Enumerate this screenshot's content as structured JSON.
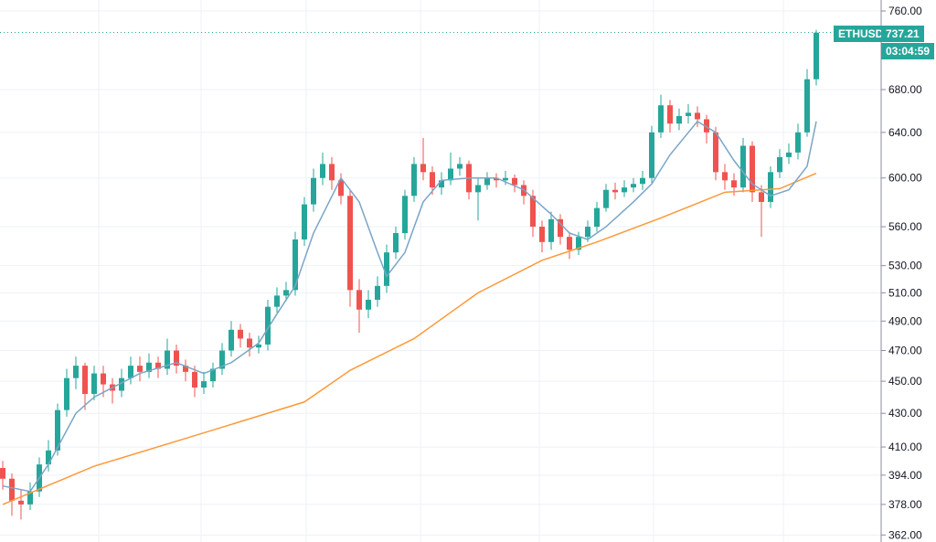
{
  "chart_data": {
    "type": "candlestick",
    "symbol": "ETHUSD",
    "last_price": "737.21",
    "countdown": "03:04:59",
    "y_scale": "log",
    "ylim": [
      362,
      760
    ],
    "y_ticks": [
      760,
      680,
      640,
      600,
      560,
      530,
      510,
      490,
      470,
      450,
      430,
      410,
      394,
      378,
      362
    ],
    "grid": true,
    "colors": {
      "up": "#26a69a",
      "down": "#ef5350",
      "ma_fast": "#7aa5c6",
      "ma_slow": "#ff9838",
      "grid": "#edf1f7",
      "tag": "#26a69a"
    },
    "candles": [
      [
        398,
        402,
        386,
        392
      ],
      [
        392,
        395,
        372,
        380
      ],
      [
        380,
        386,
        370,
        378
      ],
      [
        378,
        390,
        375,
        385
      ],
      [
        385,
        404,
        382,
        400
      ],
      [
        400,
        414,
        396,
        408
      ],
      [
        408,
        436,
        405,
        432
      ],
      [
        432,
        458,
        428,
        452
      ],
      [
        452,
        466,
        445,
        460
      ],
      [
        460,
        462,
        432,
        442
      ],
      [
        442,
        460,
        438,
        455
      ],
      [
        455,
        460,
        440,
        448
      ],
      [
        448,
        452,
        436,
        444
      ],
      [
        444,
        458,
        440,
        452
      ],
      [
        452,
        466,
        448,
        460
      ],
      [
        460,
        466,
        450,
        456
      ],
      [
        456,
        468,
        452,
        462
      ],
      [
        462,
        466,
        452,
        458
      ],
      [
        458,
        478,
        454,
        470
      ],
      [
        470,
        474,
        455,
        460
      ],
      [
        460,
        464,
        450,
        456
      ],
      [
        456,
        460,
        440,
        446
      ],
      [
        446,
        456,
        442,
        450
      ],
      [
        450,
        462,
        446,
        458
      ],
      [
        458,
        475,
        454,
        470
      ],
      [
        470,
        490,
        466,
        484
      ],
      [
        484,
        488,
        472,
        478
      ],
      [
        478,
        482,
        466,
        472
      ],
      [
        472,
        480,
        468,
        474
      ],
      [
        474,
        505,
        470,
        500
      ],
      [
        500,
        514,
        496,
        508
      ],
      [
        508,
        518,
        504,
        512
      ],
      [
        512,
        556,
        508,
        550
      ],
      [
        550,
        584,
        545,
        578
      ],
      [
        578,
        608,
        572,
        600
      ],
      [
        600,
        622,
        594,
        612
      ],
      [
        612,
        618,
        590,
        598
      ],
      [
        598,
        604,
        578,
        585
      ],
      [
        585,
        590,
        500,
        512
      ],
      [
        512,
        520,
        482,
        498
      ],
      [
        498,
        512,
        492,
        505
      ],
      [
        505,
        522,
        500,
        515
      ],
      [
        515,
        546,
        510,
        540
      ],
      [
        540,
        560,
        535,
        555
      ],
      [
        555,
        590,
        550,
        585
      ],
      [
        585,
        618,
        580,
        612
      ],
      [
        612,
        635,
        598,
        605
      ],
      [
        605,
        610,
        586,
        592
      ],
      [
        592,
        605,
        586,
        598
      ],
      [
        598,
        622,
        594,
        608
      ],
      [
        608,
        618,
        602,
        612
      ],
      [
        612,
        615,
        582,
        588
      ],
      [
        588,
        600,
        565,
        594
      ],
      [
        594,
        605,
        590,
        600
      ],
      [
        600,
        604,
        592,
        598
      ],
      [
        598,
        606,
        594,
        600
      ],
      [
        600,
        603,
        588,
        594
      ],
      [
        594,
        598,
        578,
        585
      ],
      [
        585,
        590,
        552,
        560
      ],
      [
        560,
        565,
        540,
        548
      ],
      [
        548,
        572,
        542,
        566
      ],
      [
        566,
        570,
        546,
        552
      ],
      [
        552,
        556,
        535,
        542
      ],
      [
        542,
        556,
        538,
        552
      ],
      [
        552,
        565,
        548,
        560
      ],
      [
        560,
        580,
        556,
        575
      ],
      [
        575,
        595,
        572,
        590
      ],
      [
        590,
        596,
        582,
        588
      ],
      [
        588,
        598,
        584,
        592
      ],
      [
        592,
        600,
        588,
        595
      ],
      [
        595,
        606,
        590,
        600
      ],
      [
        600,
        646,
        596,
        640
      ],
      [
        640,
        675,
        635,
        665
      ],
      [
        665,
        670,
        640,
        648
      ],
      [
        648,
        662,
        642,
        655
      ],
      [
        655,
        666,
        648,
        658
      ],
      [
        658,
        664,
        645,
        652
      ],
      [
        652,
        656,
        630,
        640
      ],
      [
        640,
        645,
        598,
        605
      ],
      [
        605,
        612,
        590,
        598
      ],
      [
        598,
        604,
        585,
        592
      ],
      [
        592,
        635,
        588,
        628
      ],
      [
        628,
        632,
        580,
        588
      ],
      [
        588,
        594,
        552,
        580
      ],
      [
        580,
        610,
        575,
        605
      ],
      [
        605,
        625,
        600,
        618
      ],
      [
        618,
        630,
        612,
        622
      ],
      [
        622,
        648,
        616,
        640
      ],
      [
        640,
        700,
        636,
        690
      ],
      [
        690,
        740,
        684,
        737
      ]
    ],
    "ma_fast": [
      [
        0,
        388
      ],
      [
        3,
        385
      ],
      [
        5,
        400
      ],
      [
        8,
        430
      ],
      [
        10,
        440
      ],
      [
        15,
        455
      ],
      [
        19,
        462
      ],
      [
        22,
        455
      ],
      [
        25,
        462
      ],
      [
        28,
        475
      ],
      [
        30,
        495
      ],
      [
        32,
        515
      ],
      [
        34,
        555
      ],
      [
        37,
        600
      ],
      [
        39,
        580
      ],
      [
        41,
        540
      ],
      [
        42,
        522
      ],
      [
        44,
        540
      ],
      [
        46,
        580
      ],
      [
        48,
        598
      ],
      [
        51,
        600
      ],
      [
        54,
        600
      ],
      [
        57,
        590
      ],
      [
        60,
        570
      ],
      [
        62,
        555
      ],
      [
        64,
        550
      ],
      [
        66,
        560
      ],
      [
        69,
        580
      ],
      [
        71,
        595
      ],
      [
        73,
        620
      ],
      [
        76,
        650
      ],
      [
        78,
        640
      ],
      [
        80,
        615
      ],
      [
        82,
        595
      ],
      [
        84,
        585
      ],
      [
        86,
        590
      ],
      [
        88,
        610
      ],
      [
        89,
        650
      ]
    ],
    "ma_slow": [
      [
        0,
        378
      ],
      [
        10,
        399
      ],
      [
        20,
        415
      ],
      [
        33,
        437
      ],
      [
        38,
        457
      ],
      [
        45,
        478
      ],
      [
        52,
        510
      ],
      [
        59,
        534
      ],
      [
        65,
        548
      ],
      [
        72,
        567
      ],
      [
        79,
        588
      ],
      [
        85,
        591
      ],
      [
        89,
        604
      ]
    ]
  }
}
